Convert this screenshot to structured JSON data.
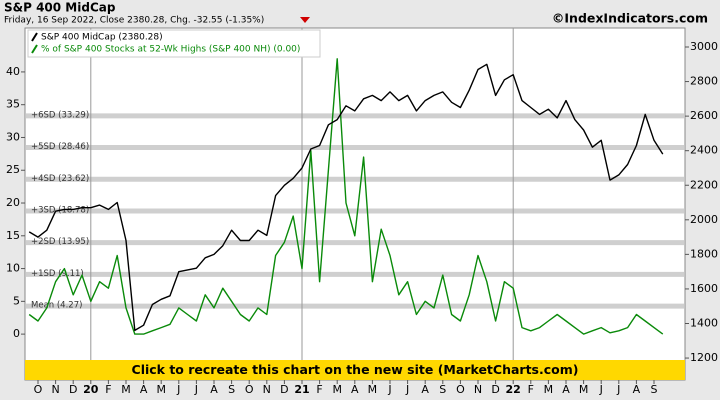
{
  "chart_data": {
    "type": "line",
    "title": "S&P 400 MidCap",
    "subtitle": "Friday, 16 Sep 2022, Close 2380.28, Chg. -32.55 (-1.35%)",
    "source": "©IndexIndicators.com",
    "banner": "Click to recreate this chart on the new site (MarketCharts.com)",
    "categories": [
      null,
      "O",
      null,
      "N",
      null,
      "D",
      null,
      "20",
      null,
      "F",
      null,
      "M",
      null,
      "A",
      null,
      "M",
      null,
      "J",
      null,
      "J",
      null,
      "A",
      null,
      "S",
      null,
      "O",
      null,
      "N",
      null,
      "D",
      null,
      "21",
      null,
      "F",
      null,
      "M",
      null,
      "A",
      null,
      "M",
      null,
      "J",
      null,
      "J",
      null,
      "A",
      null,
      "S",
      null,
      "O",
      null,
      "N",
      null,
      "D",
      null,
      "22",
      null,
      "F",
      null,
      "M",
      null,
      "A",
      null,
      "M",
      null,
      "J",
      null,
      "J",
      null,
      "A",
      null,
      "S",
      null
    ],
    "series": [
      {
        "name": "S&P 400 MidCap (2380.28)",
        "color": "#000000",
        "axis": "y2",
        "values": [
          1930,
          1900,
          1940,
          2050,
          2060,
          2060,
          2070,
          2070,
          2085,
          2060,
          2100,
          1880,
          1360,
          1390,
          1510,
          1540,
          1560,
          1700,
          1710,
          1720,
          1780,
          1800,
          1850,
          1940,
          1880,
          1880,
          1940,
          1910,
          2140,
          2200,
          2240,
          2300,
          2410,
          2430,
          2550,
          2580,
          2660,
          2630,
          2700,
          2720,
          2690,
          2740,
          2690,
          2720,
          2630,
          2690,
          2720,
          2740,
          2680,
          2650,
          2750,
          2870,
          2900,
          2720,
          2810,
          2840,
          2690,
          2650,
          2610,
          2640,
          2590,
          2690,
          2580,
          2520,
          2420,
          2460,
          2230,
          2260,
          2320,
          2430,
          2610,
          2460,
          2380.28
        ]
      },
      {
        "name": "% of S&P 400 Stocks at 52-Wk Highs (S&P 400 NH) (0.00)",
        "color": "#0a8a0a",
        "values": [
          3,
          2,
          4,
          8,
          10,
          6,
          9,
          5,
          8,
          7,
          12,
          4,
          0,
          0,
          0.5,
          1,
          1.5,
          4,
          3,
          2,
          6,
          4,
          7,
          5,
          3,
          2,
          4,
          3,
          12,
          14,
          18,
          10,
          28,
          8,
          25,
          42,
          20,
          15,
          27,
          8,
          16,
          12,
          6,
          8,
          3,
          5,
          4,
          9,
          3,
          2,
          6,
          12,
          8,
          2,
          8,
          7,
          1,
          0.5,
          1,
          2,
          3,
          2,
          1,
          0,
          0.5,
          1,
          0.2,
          0.5,
          1,
          3,
          2,
          1,
          0
        ]
      }
    ],
    "sd_lines": [
      {
        "label": "+6SD (33.29)",
        "value": 33.29
      },
      {
        "label": "+5SD (28.46)",
        "value": 28.46
      },
      {
        "label": "+4SD (23.62)",
        "value": 23.62
      },
      {
        "label": "+3SD (18.78)",
        "value": 18.78
      },
      {
        "label": "+2SD (13.95)",
        "value": 13.95
      },
      {
        "label": "+1SD (9.11)",
        "value": 9.11
      },
      {
        "label": "Mean (4.27)",
        "value": 4.27
      }
    ],
    "ylim": [
      -7.0,
      46.7
    ],
    "yticks": [
      0,
      5,
      10,
      15,
      20,
      25,
      30,
      35,
      40
    ],
    "y2lim": [
      1073,
      3110
    ],
    "y2ticks": [
      1200,
      1400,
      1600,
      1800,
      2000,
      2200,
      2400,
      2600,
      2800,
      3000
    ]
  }
}
